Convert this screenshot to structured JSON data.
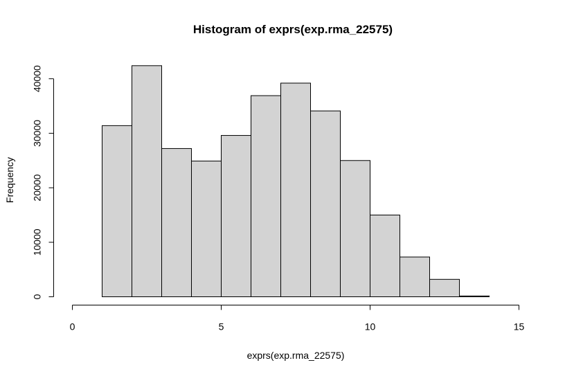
{
  "chart_data": {
    "type": "bar",
    "title": "Histogram of exprs(exp.rma_22575)",
    "xlabel": "exprs(exp.rma_22575)",
    "ylabel": "Frequency",
    "bin_edges": [
      0,
      1,
      2,
      3,
      4,
      5,
      6,
      7,
      8,
      9,
      10,
      11,
      12,
      13,
      14
    ],
    "values": [
      0,
      31400,
      42400,
      27200,
      24900,
      29600,
      36900,
      39200,
      34100,
      25000,
      15000,
      7300,
      3200,
      150
    ],
    "xlim": [
      0,
      15
    ],
    "ylim": [
      0,
      40000
    ],
    "x_ticks": [
      "0",
      "5",
      "10",
      "15"
    ],
    "y_ticks": [
      "0",
      "10000",
      "20000",
      "30000",
      "40000"
    ],
    "grid": false,
    "bar_color": "#d3d3d3",
    "edge_color": "#000000"
  }
}
